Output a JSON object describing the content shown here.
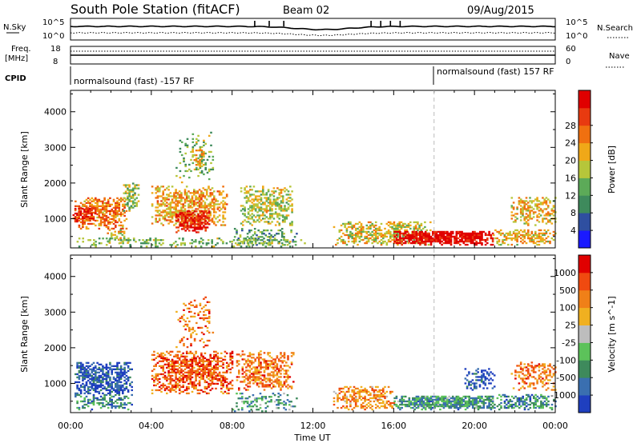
{
  "header": {
    "station": "South Pole Station (fitACF)",
    "beam": "Beam 02",
    "date": "09/Aug/2015"
  },
  "strip_labels": {
    "nsky": "N.Sky",
    "nsky_ticks": [
      "10^5",
      "10^0"
    ],
    "nsearch": "N.Search",
    "nsearch_ticks": [
      "10^5",
      "10^0"
    ],
    "freq_line1": "Freq.",
    "freq_line2": "[MHz]",
    "freq_ticks": [
      "18",
      "8"
    ],
    "nave": "Nave",
    "nave_ticks": [
      "60",
      "0"
    ],
    "cpid": "CPID"
  },
  "cpid_segments": [
    {
      "text": "normalsound (fast) -157 RF",
      "start_hour": 0
    },
    {
      "text": "normalsound (fast) 157 RF",
      "start_hour": 18
    }
  ],
  "colors": {
    "frame": "#000000",
    "dashed_marker": "#bbbbbb"
  },
  "chart_data": [
    {
      "type": "heatmap",
      "panel": "power",
      "ylabel": "Slant Range [km]",
      "xlabel": "",
      "xlim_hours": [
        0,
        24
      ],
      "ylim": [
        180,
        4600
      ],
      "yticks": [
        1000,
        2000,
        3000,
        4000
      ],
      "colorbar": {
        "label": "Power [dB]",
        "ticks": [
          "4",
          "8",
          "12",
          "16",
          "20",
          "24",
          "28"
        ],
        "colors": [
          "#1a1aff",
          "#2f4fa0",
          "#3e8a5c",
          "#5caa58",
          "#b6c63a",
          "#f0a818",
          "#f07010",
          "#e83a10",
          "#e00000"
        ]
      },
      "echo_regions": [
        {
          "t0": 0.2,
          "t1": 2.8,
          "r0": 700,
          "r1": 1600,
          "level": 0.72,
          "density": 0.65
        },
        {
          "t0": 0.1,
          "t1": 1.2,
          "r0": 900,
          "r1": 1300,
          "level": 0.92,
          "density": 0.8
        },
        {
          "t0": 1.8,
          "t1": 2.8,
          "r0": 300,
          "r1": 700,
          "level": 0.55,
          "density": 0.4
        },
        {
          "t0": 2.6,
          "t1": 3.4,
          "r0": 1200,
          "r1": 2000,
          "level": 0.45,
          "density": 0.55
        },
        {
          "t0": 4.0,
          "t1": 7.7,
          "r0": 800,
          "r1": 1900,
          "level": 0.62,
          "density": 0.6
        },
        {
          "t0": 5.2,
          "t1": 6.9,
          "r0": 600,
          "r1": 1200,
          "level": 0.9,
          "density": 0.8
        },
        {
          "t0": 5.2,
          "t1": 7.0,
          "r0": 2000,
          "r1": 3400,
          "level": 0.4,
          "density": 0.2
        },
        {
          "t0": 6.0,
          "t1": 6.6,
          "r0": 2400,
          "r1": 2900,
          "level": 0.6,
          "density": 0.45
        },
        {
          "t0": 8.4,
          "t1": 11.0,
          "r0": 800,
          "r1": 1900,
          "level": 0.5,
          "density": 0.55
        },
        {
          "t0": 8.0,
          "t1": 11.2,
          "r0": 200,
          "r1": 700,
          "level": 0.35,
          "density": 0.35
        },
        {
          "t0": 13.0,
          "t1": 17.8,
          "r0": 250,
          "r1": 900,
          "level": 0.55,
          "density": 0.55
        },
        {
          "t0": 16.0,
          "t1": 20.9,
          "r0": 250,
          "r1": 650,
          "level": 0.97,
          "density": 0.9
        },
        {
          "t0": 20.9,
          "t1": 24.0,
          "r0": 250,
          "r1": 700,
          "level": 0.6,
          "density": 0.55
        },
        {
          "t0": 21.8,
          "t1": 24.0,
          "r0": 800,
          "r1": 1600,
          "level": 0.6,
          "density": 0.45
        },
        {
          "t0": 0.3,
          "t1": 12.0,
          "r0": 200,
          "r1": 450,
          "level": 0.4,
          "density": 0.3
        }
      ]
    },
    {
      "type": "heatmap",
      "panel": "velocity",
      "ylabel": "Slant Range [km]",
      "xlabel": "Time UT",
      "xlim_hours": [
        0,
        24
      ],
      "ylim": [
        180,
        4600
      ],
      "yticks": [
        1000,
        2000,
        3000,
        4000
      ],
      "xticks": [
        "00:00",
        "04:00",
        "08:00",
        "12:00",
        "16:00",
        "20:00",
        "00:00"
      ],
      "colorbar": {
        "label": "Velocity [m s^-1]",
        "ticks": [
          "1000",
          "500",
          "100",
          "25",
          "-25",
          "-100",
          "-500",
          "-1000"
        ],
        "colors": [
          "#1f3fbf",
          "#3a6fb0",
          "#3e8a5c",
          "#5cc25a",
          "#bdbdbd",
          "#f0b020",
          "#f08018",
          "#f04a10",
          "#e00000"
        ]
      },
      "echo_regions": [
        {
          "t0": 0.2,
          "t1": 3.0,
          "r0": 700,
          "r1": 1600,
          "level": 0.1,
          "density": 0.7
        },
        {
          "t0": 0.2,
          "t1": 3.0,
          "r0": 250,
          "r1": 700,
          "level": 0.25,
          "density": 0.45
        },
        {
          "t0": 4.0,
          "t1": 8.0,
          "r0": 700,
          "r1": 1900,
          "level": 0.8,
          "density": 0.65
        },
        {
          "t0": 5.2,
          "t1": 7.0,
          "r0": 2000,
          "r1": 3400,
          "level": 0.75,
          "density": 0.2
        },
        {
          "t0": 8.2,
          "t1": 11.0,
          "r0": 800,
          "r1": 1900,
          "level": 0.75,
          "density": 0.55
        },
        {
          "t0": 8.0,
          "t1": 11.2,
          "r0": 200,
          "r1": 700,
          "level": 0.3,
          "density": 0.35
        },
        {
          "t0": 13.0,
          "t1": 16.0,
          "r0": 250,
          "r1": 900,
          "level": 0.7,
          "density": 0.5
        },
        {
          "t0": 16.0,
          "t1": 21.0,
          "r0": 250,
          "r1": 650,
          "level": 0.28,
          "density": 0.85
        },
        {
          "t0": 19.5,
          "t1": 21.0,
          "r0": 800,
          "r1": 1400,
          "level": 0.12,
          "density": 0.4
        },
        {
          "t0": 21.0,
          "t1": 24.0,
          "r0": 250,
          "r1": 700,
          "level": 0.25,
          "density": 0.55
        },
        {
          "t0": 21.8,
          "t1": 24.0,
          "r0": 800,
          "r1": 1600,
          "level": 0.75,
          "density": 0.45
        }
      ]
    }
  ]
}
